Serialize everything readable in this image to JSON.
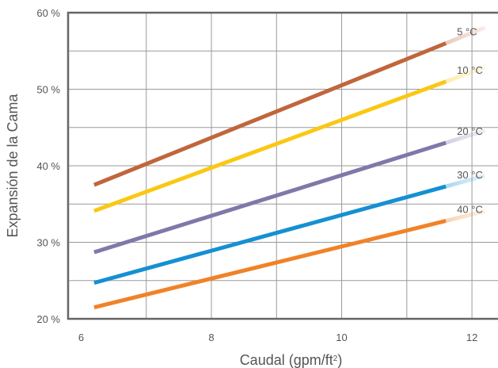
{
  "chart_data": {
    "type": "line",
    "title": "",
    "xlabel": "Caudal (gpm/ft",
    "xlabel_sup": "2",
    "xlabel_close": ")",
    "ylabel": "Expansión de la Cama",
    "xlim": [
      5.8,
      12.4
    ],
    "ylim": [
      20,
      60
    ],
    "x_ticks": [
      6,
      8,
      10,
      12
    ],
    "x_tick_labels": [
      "6",
      "8",
      "10",
      "12"
    ],
    "y_ticks": [
      20,
      30,
      40,
      50,
      60
    ],
    "y_tick_labels": [
      "20 %",
      "30 %",
      "40 %",
      "50 %",
      "60 %"
    ],
    "grid": true,
    "series": [
      {
        "name": "5 °C",
        "color": "#c0663c",
        "x": [
          6.2,
          11.6
        ],
        "y": [
          37.5,
          56.0
        ]
      },
      {
        "name": "10 °C",
        "color": "#fac814",
        "x": [
          6.2,
          11.6
        ],
        "y": [
          34.1,
          51.0
        ]
      },
      {
        "name": "20 °C",
        "color": "#8078a8",
        "x": [
          6.2,
          11.6
        ],
        "y": [
          28.7,
          43.0
        ]
      },
      {
        "name": "30 °C",
        "color": "#1590d2",
        "x": [
          6.2,
          11.6
        ],
        "y": [
          24.7,
          37.3
        ]
      },
      {
        "name": "40 °C",
        "color": "#f08228",
        "x": [
          6.2,
          11.6
        ],
        "y": [
          21.5,
          32.8
        ]
      }
    ]
  }
}
